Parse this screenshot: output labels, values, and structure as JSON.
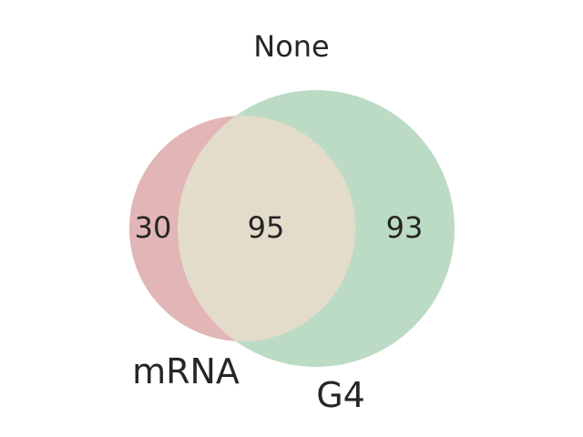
{
  "title": "None",
  "sets": [
    {
      "name": "mRNA",
      "color": "#e2b5b6",
      "size": 125
    },
    {
      "name": "G4",
      "color": "#bcdbc5",
      "size": 188
    }
  ],
  "regions": {
    "mrna_only": "30",
    "intersection": "95",
    "g4_only": "93"
  },
  "colors": {
    "overlap": "#e4dcca",
    "text": "#262626",
    "background": "#ffffff"
  }
}
